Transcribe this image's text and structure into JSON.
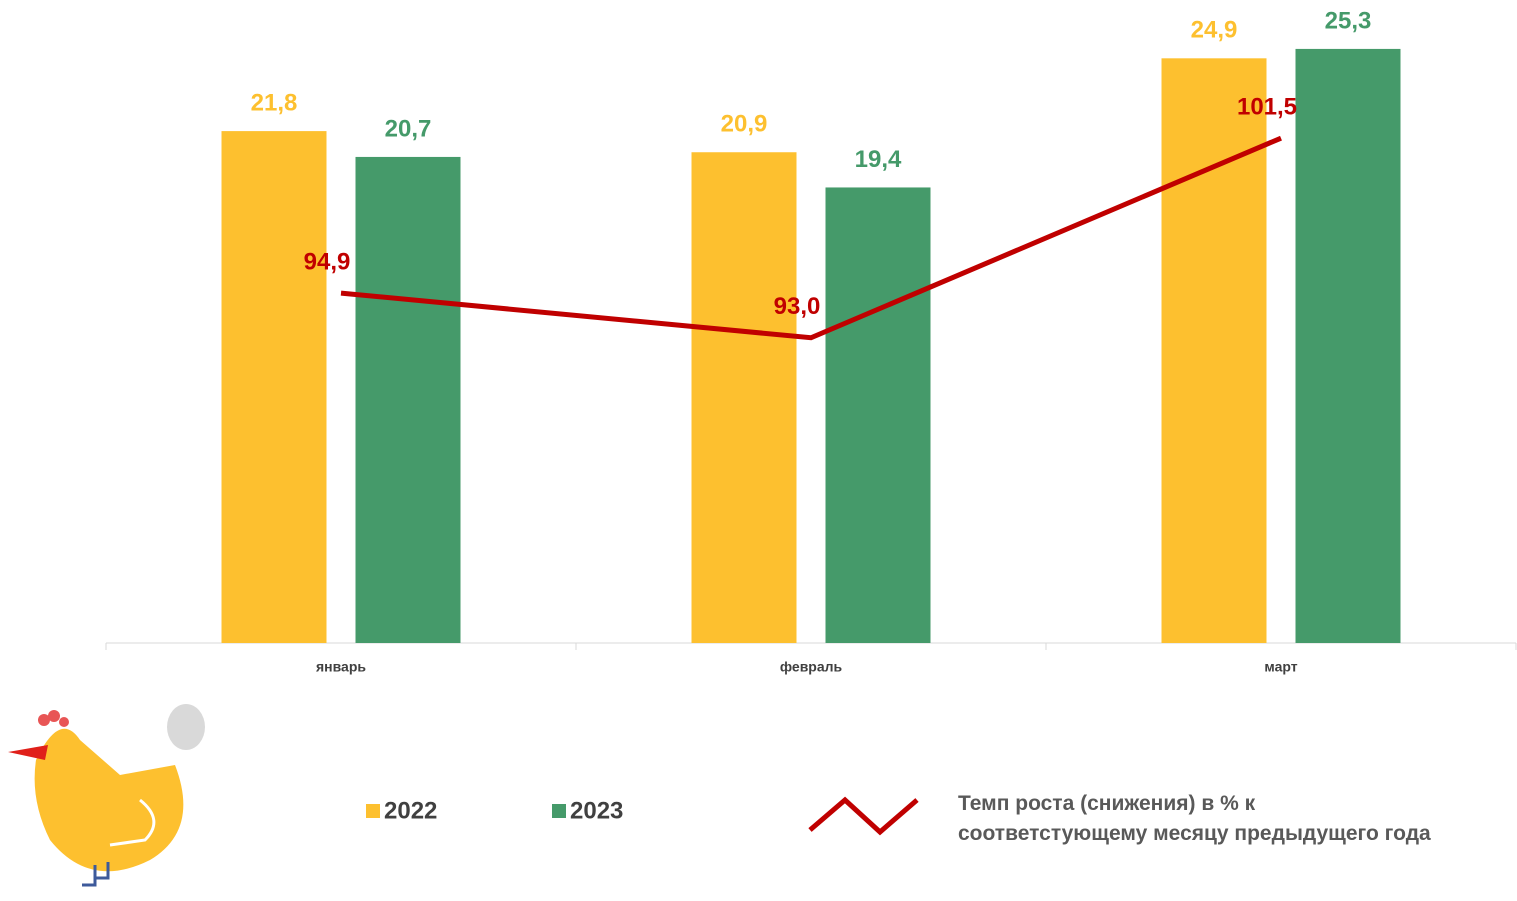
{
  "chart_data": {
    "type": "bar_line",
    "categories": [
      "январь",
      "февраль",
      "март"
    ],
    "series": [
      {
        "name": "2022",
        "type": "bar",
        "color": "#fdc02f",
        "values": [
          21.8,
          20.9,
          24.9
        ],
        "value_labels": [
          "21,8",
          "20,9",
          "24,9"
        ]
      },
      {
        "name": "2023",
        "type": "bar",
        "color": "#459a6a",
        "values": [
          20.7,
          19.4,
          25.3
        ],
        "value_labels": [
          "20,7",
          "19,4",
          "25,3"
        ]
      },
      {
        "name": "Темп роста (снижения) в % к соответстующему месяцу предыдущего года",
        "type": "line",
        "axis": "y2",
        "color": "#c00000",
        "values": [
          94.9,
          93.0,
          101.5
        ],
        "value_labels": [
          "94,9",
          "93,0",
          "101,5"
        ]
      }
    ],
    "ylim": [
      0,
      27
    ],
    "y2lim": [
      80,
      107
    ],
    "grid": false
  }
}
